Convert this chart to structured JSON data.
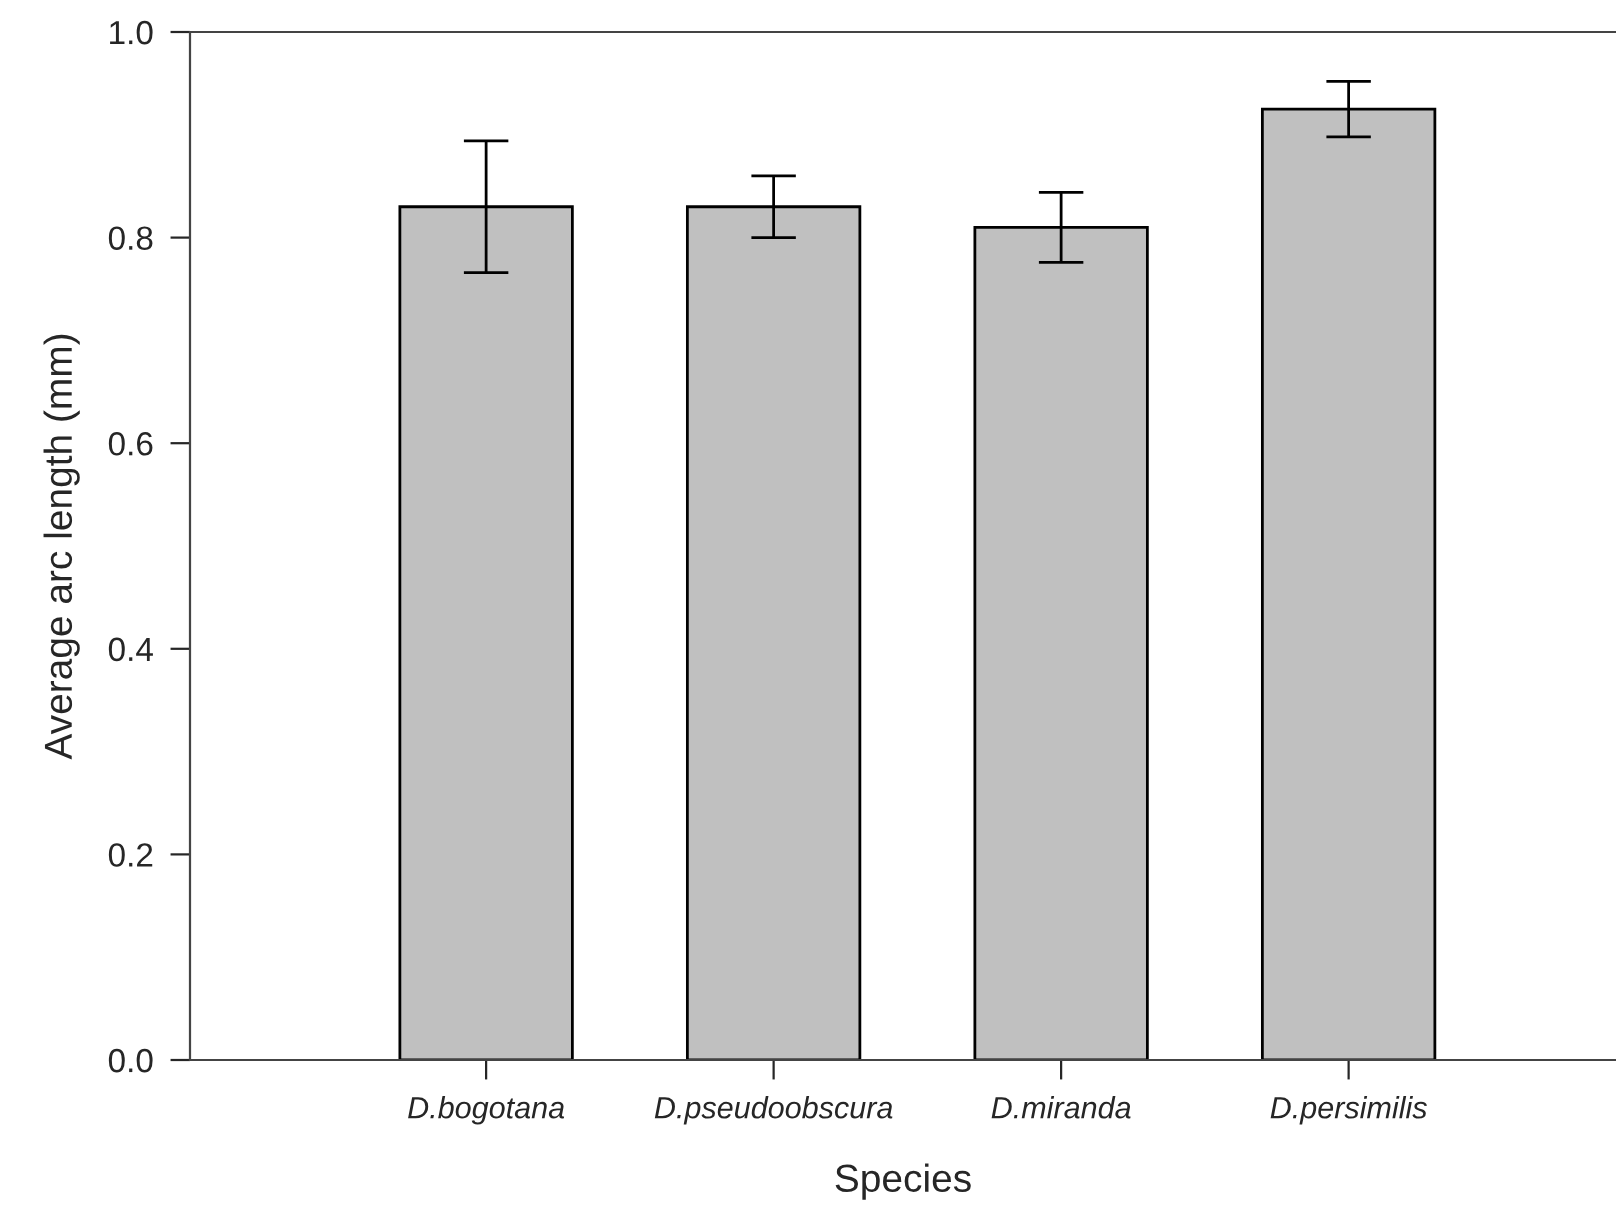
{
  "chart_data": {
    "type": "bar",
    "xlabel": "Species",
    "ylabel": "Average arc length (mm)",
    "categories": [
      "D.bogotana",
      "D.pseudoobscura",
      "D.miranda",
      "D.persimilis"
    ],
    "values": [
      0.83,
      0.83,
      0.81,
      0.925
    ],
    "errors": [
      0.064,
      0.03,
      0.034,
      0.027
    ],
    "color": "#c0c0c0",
    "ylim": [
      0,
      1
    ],
    "yticks": [
      {
        "value": 0,
        "label": "0.0"
      },
      {
        "value": 0.2,
        "label": "0.2"
      },
      {
        "value": 0.4,
        "label": "0.4"
      },
      {
        "value": 0.6,
        "label": "0.6"
      },
      {
        "value": 0.8,
        "label": "0.8"
      },
      {
        "value": 1,
        "label": "1.0"
      }
    ],
    "grid": false
  }
}
